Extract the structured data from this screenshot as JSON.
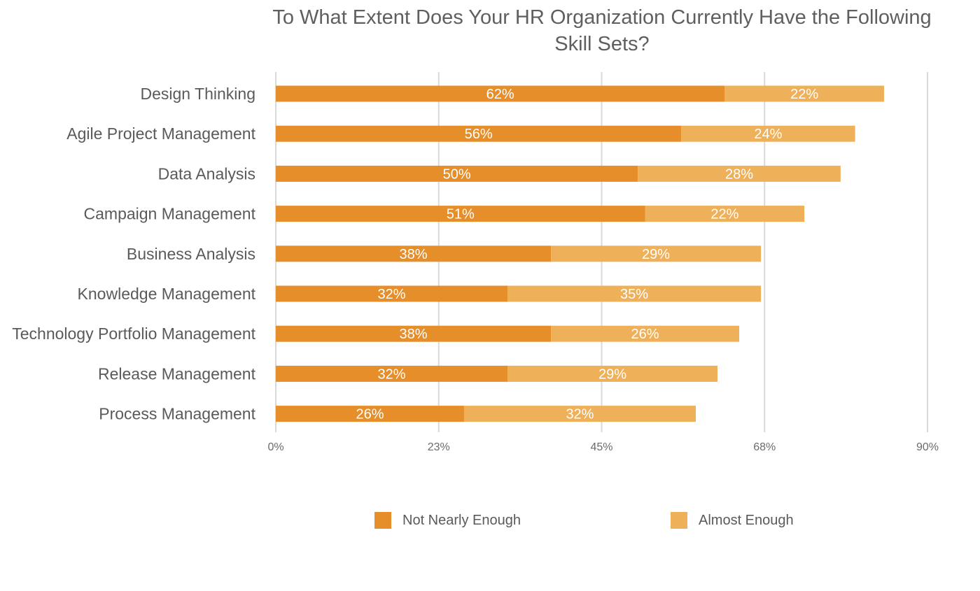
{
  "chart_data": {
    "type": "bar",
    "orientation": "horizontal",
    "stacked": true,
    "title": "To What Extent Does Your HR Organization Currently Have the Following Skill Sets?",
    "categories": [
      "Design Thinking",
      "Agile Project Management",
      "Data Analysis",
      "Campaign Management",
      "Business Analysis",
      "Knowledge Management",
      "Technology Portfolio Management",
      "Release Management",
      "Process Management"
    ],
    "series": [
      {
        "name": "Not Nearly Enough",
        "color": "#e58e2a",
        "values": [
          62,
          56,
          50,
          51,
          38,
          32,
          38,
          32,
          26
        ],
        "labels": [
          "62%",
          "56%",
          "50%",
          "51%",
          "38%",
          "32%",
          "38%",
          "32%",
          "26%"
        ]
      },
      {
        "name": "Almost Enough",
        "color": "#efb05a",
        "values": [
          22,
          24,
          28,
          22,
          29,
          35,
          26,
          29,
          32
        ],
        "labels": [
          "22%",
          "24%",
          "28%",
          "22%",
          "29%",
          "35%",
          "26%",
          "29%",
          "32%"
        ]
      }
    ],
    "xlim": [
      0,
      90
    ],
    "x_ticks": [
      0,
      22.5,
      45,
      67.5,
      90
    ],
    "x_tick_labels": [
      "0%",
      "23%",
      "45%",
      "68%",
      "90%"
    ],
    "grid": "vertical",
    "legend_position": "bottom"
  }
}
